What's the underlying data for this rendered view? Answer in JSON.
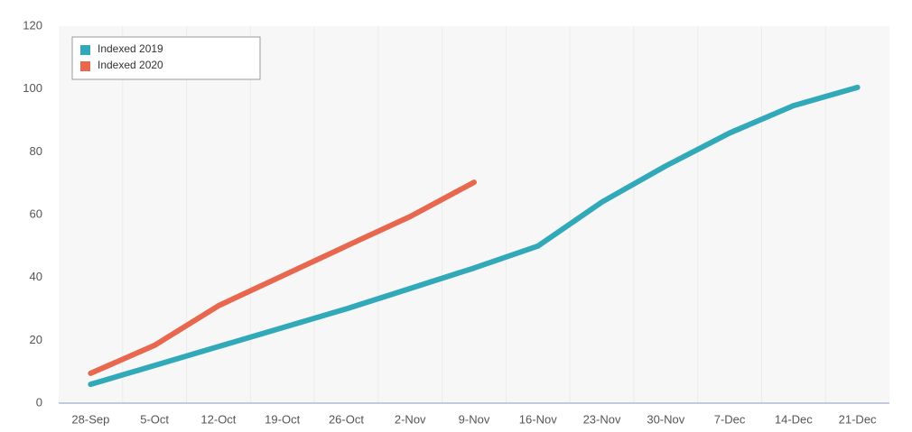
{
  "chart_data": {
    "type": "line",
    "categories": [
      "28-Sep",
      "5-Oct",
      "12-Oct",
      "19-Oct",
      "26-Oct",
      "2-Nov",
      "9-Nov",
      "16-Nov",
      "23-Nov",
      "30-Nov",
      "7-Dec",
      "14-Dec",
      "21-Dec"
    ],
    "series": [
      {
        "name": "Indexed 2019",
        "color": "#32a9b9",
        "values": [
          6,
          12,
          18,
          24,
          30,
          36.5,
          43,
          50,
          64,
          75.5,
          86,
          94.7,
          100.5
        ]
      },
      {
        "name": "Indexed 2020",
        "color": "#e8674f",
        "values": [
          9.5,
          18.4,
          31,
          40.5,
          50,
          59.4,
          70.3,
          null,
          null,
          null,
          null,
          null,
          null
        ]
      }
    ],
    "ylim": [
      0,
      120
    ],
    "yticks": [
      0,
      20,
      40,
      60,
      80,
      100,
      120
    ],
    "grid": true,
    "legend": "top-left"
  }
}
